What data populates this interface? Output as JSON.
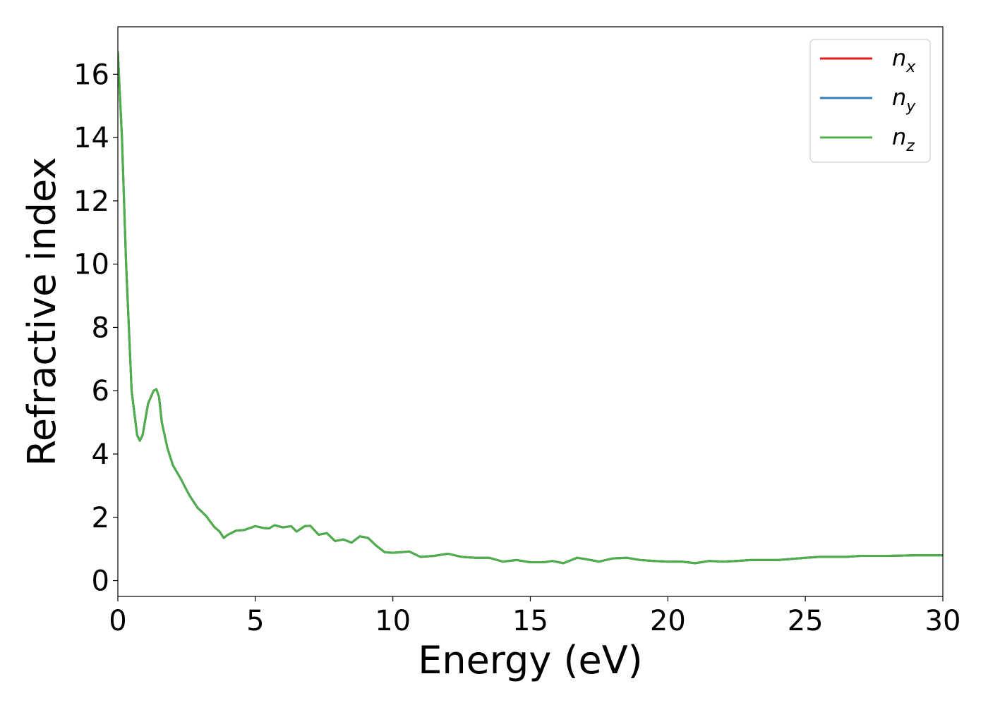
{
  "chart_data": {
    "type": "line",
    "xlabel": "Energy (eV)",
    "ylabel": "Refractive index",
    "xlim": [
      0,
      30
    ],
    "ylim": [
      -0.5,
      17.5
    ],
    "xticks": [
      0,
      5,
      10,
      15,
      20,
      25,
      30
    ],
    "yticks": [
      0,
      2,
      4,
      6,
      8,
      10,
      12,
      14,
      16
    ],
    "grid": false,
    "legend_position": "top-right",
    "series": [
      {
        "name": "n_x",
        "label_base": "n",
        "label_sub": "x",
        "color": "#e41a1c",
        "x": [
          0,
          0.15,
          0.3,
          0.5,
          0.7,
          0.8,
          0.9,
          1.1,
          1.3,
          1.4,
          1.5,
          1.6,
          1.8,
          2.0,
          2.3,
          2.6,
          2.9,
          3.2,
          3.5,
          3.7,
          3.85,
          4.0,
          4.3,
          4.6,
          5.0,
          5.3,
          5.5,
          5.7,
          6.0,
          6.3,
          6.5,
          6.8,
          7.0,
          7.3,
          7.6,
          7.9,
          8.2,
          8.5,
          8.8,
          9.1,
          9.4,
          9.7,
          10.0,
          10.3,
          10.6,
          11.0,
          11.5,
          12.0,
          12.5,
          13.0,
          13.5,
          14.0,
          14.5,
          15.0,
          15.5,
          15.8,
          16.2,
          16.7,
          17.0,
          17.5,
          18.0,
          18.5,
          19.0,
          19.5,
          20.0,
          20.5,
          21.0,
          21.5,
          22.0,
          22.5,
          23.0,
          24.0,
          25.0,
          25.5,
          26.5,
          27.0,
          28.0,
          29.0,
          30.0
        ],
        "values": [
          16.7,
          14.0,
          10.0,
          6.0,
          4.6,
          4.42,
          4.6,
          5.6,
          6.0,
          6.05,
          5.8,
          5.0,
          4.2,
          3.65,
          3.2,
          2.7,
          2.3,
          2.05,
          1.7,
          1.55,
          1.35,
          1.45,
          1.58,
          1.6,
          1.72,
          1.66,
          1.65,
          1.75,
          1.68,
          1.72,
          1.55,
          1.72,
          1.73,
          1.45,
          1.5,
          1.25,
          1.3,
          1.2,
          1.4,
          1.35,
          1.1,
          0.9,
          0.88,
          0.9,
          0.92,
          0.75,
          0.78,
          0.85,
          0.75,
          0.72,
          0.72,
          0.6,
          0.65,
          0.58,
          0.58,
          0.62,
          0.55,
          0.72,
          0.68,
          0.6,
          0.7,
          0.72,
          0.65,
          0.62,
          0.6,
          0.6,
          0.55,
          0.62,
          0.6,
          0.62,
          0.65,
          0.65,
          0.72,
          0.75,
          0.75,
          0.78,
          0.78,
          0.8,
          0.8
        ]
      },
      {
        "name": "n_y",
        "label_base": "n",
        "label_sub": "y",
        "color": "#377eb8",
        "x": [
          0,
          0.15,
          0.3,
          0.5,
          0.7,
          0.8,
          0.9,
          1.1,
          1.3,
          1.4,
          1.5,
          1.6,
          1.8,
          2.0,
          2.3,
          2.6,
          2.9,
          3.2,
          3.5,
          3.7,
          3.85,
          4.0,
          4.3,
          4.6,
          5.0,
          5.3,
          5.5,
          5.7,
          6.0,
          6.3,
          6.5,
          6.8,
          7.0,
          7.3,
          7.6,
          7.9,
          8.2,
          8.5,
          8.8,
          9.1,
          9.4,
          9.7,
          10.0,
          10.3,
          10.6,
          11.0,
          11.5,
          12.0,
          12.5,
          13.0,
          13.5,
          14.0,
          14.5,
          15.0,
          15.5,
          15.8,
          16.2,
          16.7,
          17.0,
          17.5,
          18.0,
          18.5,
          19.0,
          19.5,
          20.0,
          20.5,
          21.0,
          21.5,
          22.0,
          22.5,
          23.0,
          24.0,
          25.0,
          25.5,
          26.5,
          27.0,
          28.0,
          29.0,
          30.0
        ],
        "values": [
          16.7,
          14.0,
          10.0,
          6.0,
          4.6,
          4.42,
          4.6,
          5.6,
          6.0,
          6.05,
          5.8,
          5.0,
          4.2,
          3.65,
          3.2,
          2.7,
          2.3,
          2.05,
          1.7,
          1.55,
          1.35,
          1.45,
          1.58,
          1.6,
          1.72,
          1.66,
          1.65,
          1.75,
          1.68,
          1.72,
          1.55,
          1.72,
          1.73,
          1.45,
          1.5,
          1.25,
          1.3,
          1.2,
          1.4,
          1.35,
          1.1,
          0.9,
          0.88,
          0.9,
          0.92,
          0.75,
          0.78,
          0.85,
          0.75,
          0.72,
          0.72,
          0.6,
          0.65,
          0.58,
          0.58,
          0.62,
          0.55,
          0.72,
          0.68,
          0.6,
          0.7,
          0.72,
          0.65,
          0.62,
          0.6,
          0.6,
          0.55,
          0.62,
          0.6,
          0.62,
          0.65,
          0.65,
          0.72,
          0.75,
          0.75,
          0.78,
          0.78,
          0.8,
          0.8
        ]
      },
      {
        "name": "n_z",
        "label_base": "n",
        "label_sub": "z",
        "color": "#4daf4a",
        "x": [
          0,
          0.15,
          0.3,
          0.5,
          0.7,
          0.8,
          0.9,
          1.1,
          1.3,
          1.4,
          1.5,
          1.6,
          1.8,
          2.0,
          2.3,
          2.6,
          2.9,
          3.2,
          3.5,
          3.7,
          3.85,
          4.0,
          4.3,
          4.6,
          5.0,
          5.3,
          5.5,
          5.7,
          6.0,
          6.3,
          6.5,
          6.8,
          7.0,
          7.3,
          7.6,
          7.9,
          8.2,
          8.5,
          8.8,
          9.1,
          9.4,
          9.7,
          10.0,
          10.3,
          10.6,
          11.0,
          11.5,
          12.0,
          12.5,
          13.0,
          13.5,
          14.0,
          14.5,
          15.0,
          15.5,
          15.8,
          16.2,
          16.7,
          17.0,
          17.5,
          18.0,
          18.5,
          19.0,
          19.5,
          20.0,
          20.5,
          21.0,
          21.5,
          22.0,
          22.5,
          23.0,
          24.0,
          25.0,
          25.5,
          26.5,
          27.0,
          28.0,
          29.0,
          30.0
        ],
        "values": [
          16.7,
          14.0,
          10.0,
          6.0,
          4.6,
          4.42,
          4.6,
          5.6,
          6.0,
          6.05,
          5.8,
          5.0,
          4.2,
          3.65,
          3.2,
          2.7,
          2.3,
          2.05,
          1.7,
          1.55,
          1.35,
          1.45,
          1.58,
          1.6,
          1.72,
          1.66,
          1.65,
          1.75,
          1.68,
          1.72,
          1.55,
          1.72,
          1.73,
          1.45,
          1.5,
          1.25,
          1.3,
          1.2,
          1.4,
          1.35,
          1.1,
          0.9,
          0.88,
          0.9,
          0.92,
          0.75,
          0.78,
          0.85,
          0.75,
          0.72,
          0.72,
          0.6,
          0.65,
          0.58,
          0.58,
          0.62,
          0.55,
          0.72,
          0.68,
          0.6,
          0.7,
          0.72,
          0.65,
          0.62,
          0.6,
          0.6,
          0.55,
          0.62,
          0.6,
          0.62,
          0.65,
          0.65,
          0.72,
          0.75,
          0.75,
          0.78,
          0.78,
          0.8,
          0.8
        ]
      }
    ]
  }
}
